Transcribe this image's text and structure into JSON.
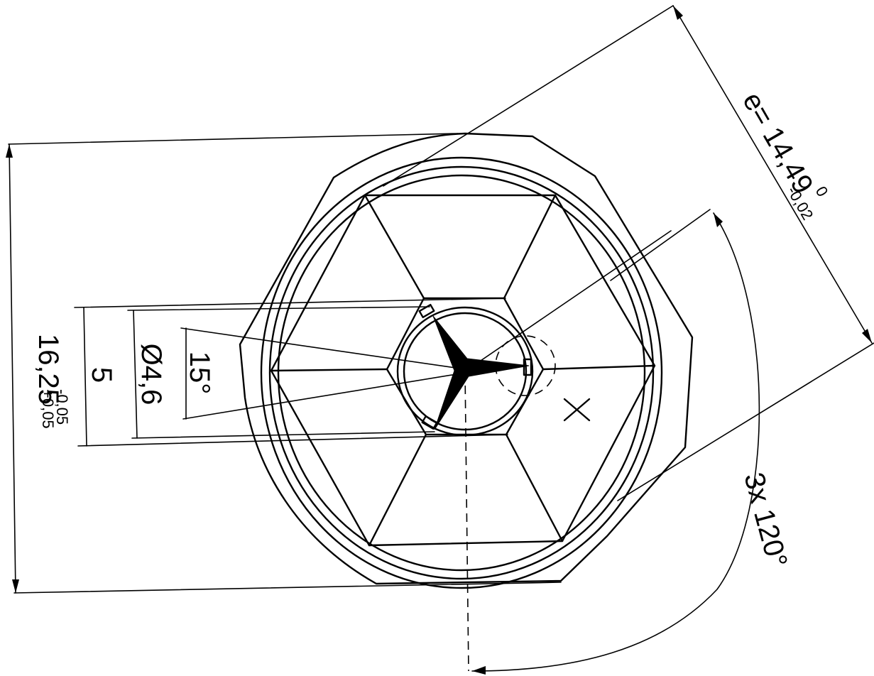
{
  "labels": {
    "height_value": "16,25",
    "height_tol_upper": "+0,05",
    "height_tol_lower": "-0,05",
    "width_value": "5",
    "diameter": "Ø4,6",
    "angle": "15°",
    "across_corners": "e= 14,49",
    "across_corners_tol_upper": "0",
    "across_corners_tol_lower": "-0,02",
    "repeat_angle": "3x 120°",
    "marker": "X"
  }
}
